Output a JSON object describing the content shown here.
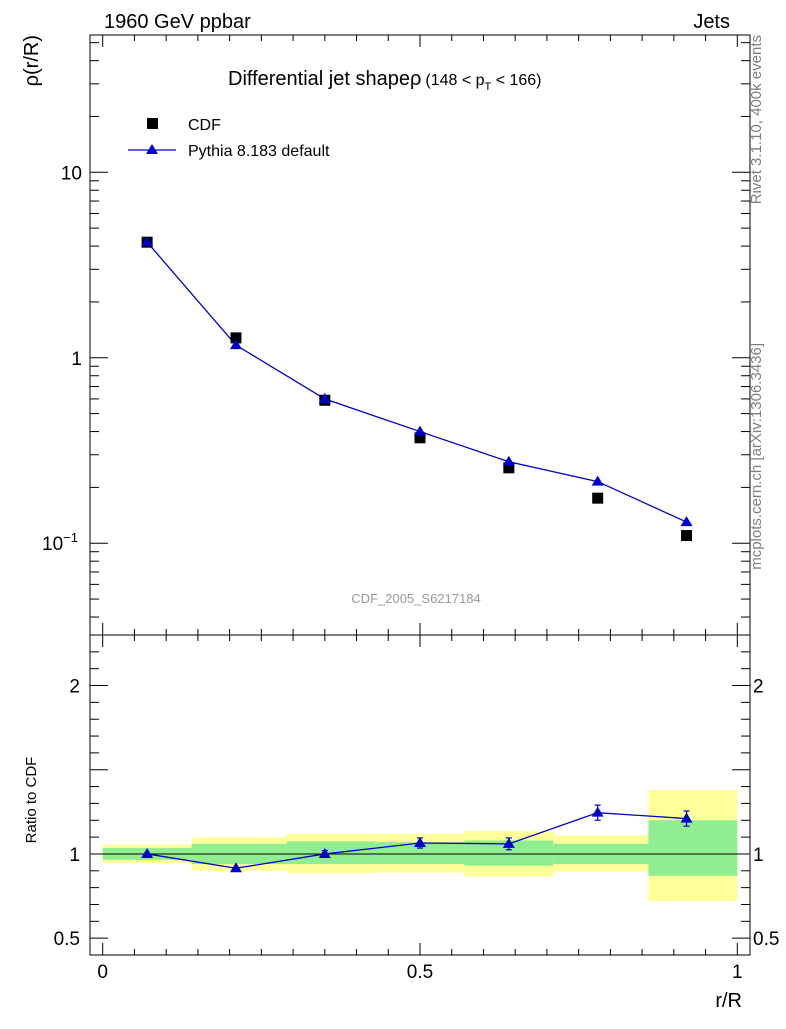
{
  "header": {
    "energy": "1960 GeV ppbar",
    "category": "Jets"
  },
  "side_text": {
    "rivet": "Rivet 3.1.10,  400k events",
    "source": "mcplots.cern.ch [arXiv:1306.3436]"
  },
  "watermark": "CDF_2005_S6217184",
  "colors": {
    "mc": "#0000cc",
    "band_inner": "#90ee90",
    "band_outer": "#ffff99",
    "data": "#000000"
  },
  "chart_data": [
    {
      "type": "scatter",
      "title": "Differential jet shape",
      "title_symbol": "ρ",
      "title_range": {
        "pre": "(148 < p",
        "sub": "T",
        "post": " < 166)"
      },
      "xlabel": "r/R",
      "ylabel": "ρ(r/R)",
      "yscale": "log",
      "xlim": [
        -0.02,
        1.02
      ],
      "ylim": [
        0.032,
        55
      ],
      "ytick_labels": [
        {
          "value": 10,
          "label": "10"
        },
        {
          "value": 1,
          "label": "1"
        },
        {
          "value": 0.1,
          "label": "10",
          "sup": "−1"
        }
      ],
      "legend": [
        {
          "label": "CDF",
          "marker": "square"
        },
        {
          "label": "Pythia 8.183 default",
          "marker": "triangle"
        }
      ],
      "series": [
        {
          "name": "CDF",
          "x": [
            0.07,
            0.21,
            0.35,
            0.5,
            0.64,
            0.78,
            0.92
          ],
          "y": [
            4.2,
            1.28,
            0.59,
            0.37,
            0.255,
            0.175,
            0.11
          ]
        },
        {
          "name": "Pythia 8.183 default",
          "x": [
            0.07,
            0.21,
            0.35,
            0.5,
            0.64,
            0.78,
            0.92
          ],
          "y": [
            4.2,
            1.17,
            0.6,
            0.4,
            0.275,
            0.215,
            0.13
          ]
        }
      ]
    },
    {
      "type": "scatter",
      "xlabel": "r/R",
      "ylabel": "Ratio to CDF",
      "xlim": [
        -0.02,
        1.02
      ],
      "ylim": [
        0.4,
        2.3
      ],
      "xtick_labels": [
        {
          "value": 0,
          "label": "0"
        },
        {
          "value": 0.5,
          "label": "0.5"
        },
        {
          "value": 1,
          "label": "1"
        }
      ],
      "ytick_labels": [
        {
          "value": 2,
          "label": "2"
        },
        {
          "value": 1,
          "label": "1"
        },
        {
          "value": 0.5,
          "label": "0.5"
        }
      ],
      "bands": [
        {
          "x": [
            0,
            0.14
          ],
          "inner": [
            0.965,
            1.035
          ],
          "outer": [
            0.945,
            1.055
          ]
        },
        {
          "x": [
            0.14,
            0.29
          ],
          "inner": [
            0.94,
            1.06
          ],
          "outer": [
            0.9,
            1.1
          ]
        },
        {
          "x": [
            0.29,
            0.43
          ],
          "inner": [
            0.94,
            1.075
          ],
          "outer": [
            0.885,
            1.12
          ]
        },
        {
          "x": [
            0.43,
            0.57
          ],
          "inner": [
            0.94,
            1.07
          ],
          "outer": [
            0.89,
            1.12
          ]
        },
        {
          "x": [
            0.57,
            0.71
          ],
          "inner": [
            0.93,
            1.08
          ],
          "outer": [
            0.865,
            1.135
          ]
        },
        {
          "x": [
            0.71,
            0.86
          ],
          "inner": [
            0.94,
            1.06
          ],
          "outer": [
            0.895,
            1.11
          ]
        },
        {
          "x": [
            0.86,
            1.0
          ],
          "inner": [
            0.87,
            1.2
          ],
          "outer": [
            0.72,
            1.38
          ]
        }
      ],
      "series": [
        {
          "name": "Pythia 8.183 default",
          "x": [
            0.07,
            0.21,
            0.35,
            0.5,
            0.64,
            0.78,
            0.92
          ],
          "y": [
            1.0,
            0.915,
            1.0,
            1.065,
            1.06,
            1.245,
            1.21
          ],
          "err": [
            0.01,
            0.01,
            0.02,
            0.03,
            0.035,
            0.045,
            0.045
          ]
        }
      ]
    }
  ]
}
